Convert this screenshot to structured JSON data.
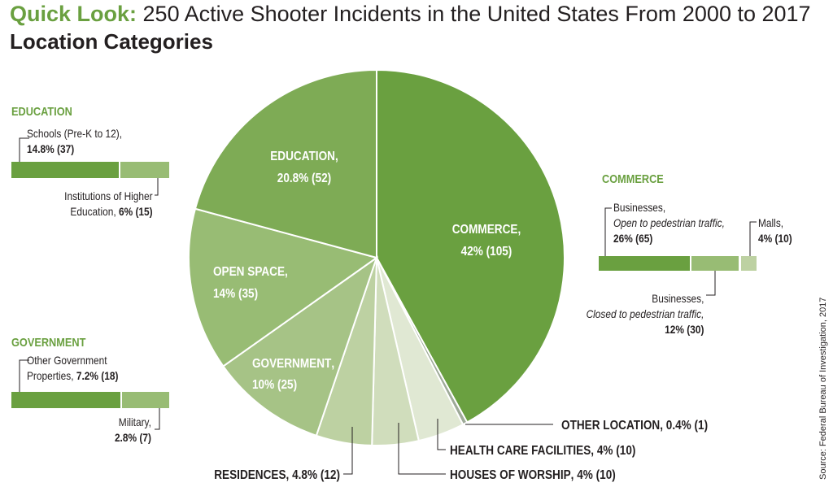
{
  "header": {
    "title_prefix": "Quick Look:",
    "title_rest": "250 Active Shooter Incidents in the United States From 2000 to 2017",
    "subtitle": "Location Categories"
  },
  "colors": {
    "accent": "#6aa040",
    "commerce": "#6aa040",
    "education": "#7eab55",
    "open_space": "#98bc74",
    "government": "#a6c386",
    "residences": "#bdd1a2",
    "worship": "#d0ddbc",
    "health": "#e0e8d3",
    "other": "#9eaa98"
  },
  "chart_data": {
    "type": "pie",
    "title": "Location Categories",
    "slices": [
      {
        "key": "commerce",
        "name": "COMMERCE",
        "pct_label": "42% (105)",
        "value": 105,
        "percent": 42
      },
      {
        "key": "other",
        "name": "OTHER LOCATION",
        "pct_label": "0.4% (1)",
        "value": 1,
        "percent": 0.4
      },
      {
        "key": "health",
        "name": "HEALTH CARE FACILITIES",
        "pct_label": "4% (10)",
        "value": 10,
        "percent": 4
      },
      {
        "key": "worship",
        "name": "HOUSES OF WORSHIP",
        "pct_label": "4%  (10)",
        "value": 10,
        "percent": 4
      },
      {
        "key": "residences",
        "name": "RESIDENCES",
        "pct_label": "4.8% (12)",
        "value": 12,
        "percent": 4.8
      },
      {
        "key": "government",
        "name": "GOVERNMENT",
        "pct_label": "10% (25)",
        "value": 25,
        "percent": 10
      },
      {
        "key": "open_space",
        "name": "OPEN SPACE",
        "pct_label": "14% (35)",
        "value": 35,
        "percent": 14
      },
      {
        "key": "education",
        "name": "EDUCATION",
        "pct_label": "20.8% (52)",
        "value": 52,
        "percent": 20.8
      }
    ],
    "breakdowns": [
      {
        "category": "EDUCATION",
        "parts": [
          {
            "name": "Schools (Pre-K to 12),",
            "value_label": "14.8% (37)",
            "percent": 14.8
          },
          {
            "name": "Institutions of Higher Education,",
            "value_label": "6% (15)",
            "percent": 6
          }
        ]
      },
      {
        "category": "GOVERNMENT",
        "parts": [
          {
            "name": "Other Government Properties,",
            "value_label": "7.2% (18)",
            "percent": 7.2
          },
          {
            "name": "Military,",
            "value_label": "2.8% (7)",
            "percent": 2.8
          }
        ]
      },
      {
        "category": "COMMERCE",
        "parts": [
          {
            "name": "Businesses, Open to pedestrian traffic,",
            "value_label": "26% (65)",
            "percent": 26
          },
          {
            "name": "Businesses, Closed to pedestrian traffic,",
            "value_label": "12% (30)",
            "percent": 12
          },
          {
            "name": "Malls,",
            "value_label": "4% (10)",
            "percent": 4
          }
        ]
      }
    ]
  },
  "panels": {
    "education": {
      "heading": "EDUCATION",
      "schools_line1": "Schools (Pre-K to 12),",
      "schools_value": "14.8% (37)",
      "higher_line1": "Institutions of Higher",
      "higher_line2": "Education,",
      "higher_value": "6% (15)"
    },
    "government": {
      "heading": "GOVERNMENT",
      "other_line1": "Other Government",
      "other_line2": "Properties,",
      "other_value": "7.2% (18)",
      "military_line1": "Military,",
      "military_value": "2.8% (7)"
    },
    "commerce": {
      "heading": "COMMERCE",
      "open_line1": "Businesses,",
      "open_line2": "Open to pedestrian traffic,",
      "open_value": "26% (65)",
      "malls_line1": "Malls,",
      "malls_value": "4% (10)",
      "closed_line1": "Businesses,",
      "closed_line2": "Closed to pedestrian traffic,",
      "closed_value": "12% (30)"
    }
  },
  "source": "Source: Federal Bureau of Investigation, 2017"
}
